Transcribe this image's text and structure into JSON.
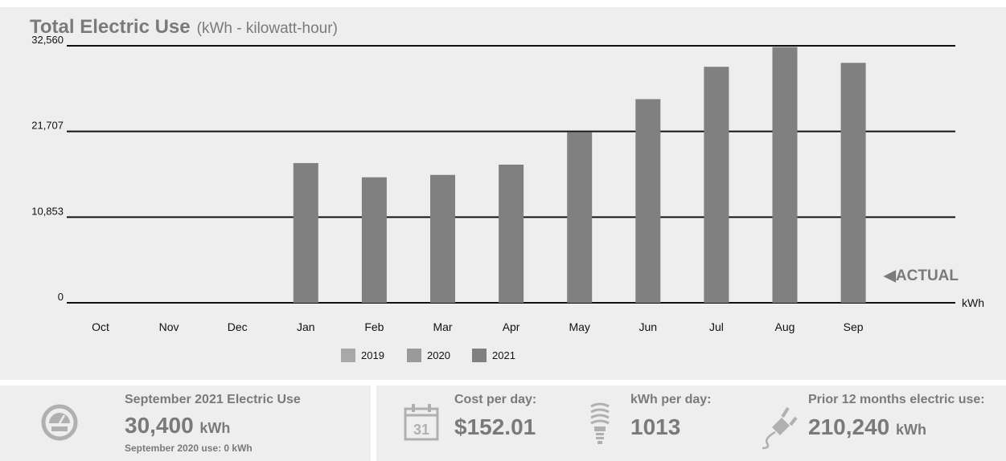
{
  "chart_data": {
    "type": "bar",
    "title": "Total Electric Use",
    "subtitle": "(kWh - kilowatt-hour)",
    "categories": [
      "Oct",
      "Nov",
      "Dec",
      "Jan",
      "Feb",
      "Mar",
      "Apr",
      "May",
      "Jun",
      "Jul",
      "Aug",
      "Sep"
    ],
    "series": [
      {
        "name": "2019",
        "values": [
          null,
          null,
          null,
          null,
          null,
          null,
          null,
          null,
          null,
          null,
          null,
          null
        ]
      },
      {
        "name": "2020",
        "values": [
          null,
          null,
          null,
          null,
          null,
          null,
          null,
          null,
          null,
          null,
          null,
          null
        ]
      },
      {
        "name": "2021",
        "values": [
          null,
          null,
          null,
          17700,
          15900,
          16200,
          17500,
          21600,
          25800,
          29900,
          32400,
          30400
        ]
      }
    ],
    "yticks": [
      "0",
      "10,853",
      "21,707",
      "32,560"
    ],
    "ytick_values": [
      0,
      10853,
      21707,
      32560
    ],
    "ylim": [
      0,
      32560
    ],
    "yunit": "kWh",
    "grid": true,
    "legend_position": "bottom-center",
    "annotation": "ACTUAL"
  },
  "colors": {
    "panel_bg": "#eeeeee",
    "text": "#7a7a7a",
    "bar_2019": "#a8a8a8",
    "bar_2020": "#9a9a9a",
    "bar_2021": "#808080",
    "gridline": "#111111"
  },
  "summary": {
    "month_title": "September 2021 Electric Use",
    "month_value": "30,400",
    "month_unit": "kWh",
    "prior_year_note": "September 2020 use: 0 kWh",
    "cost_label": "Cost per day:",
    "cost_value": "$152.01",
    "calendar_day": "31",
    "kwh_day_label": "kWh per day:",
    "kwh_day_value": "1013",
    "prior12_label": "Prior 12 months electric use:",
    "prior12_value": "210,240",
    "prior12_unit": "kWh"
  },
  "icons": [
    "meter-icon",
    "calendar-icon",
    "lightbulb-icon",
    "plug-icon"
  ]
}
